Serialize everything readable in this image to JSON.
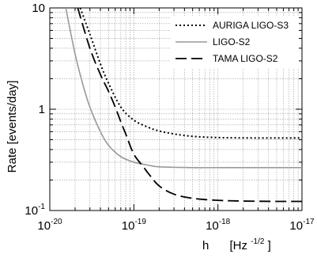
{
  "chart_data": {
    "type": "line",
    "xlabel": "h [Hz-1/2]",
    "xlabel_parts": {
      "symbol": "h",
      "unit_prefix": "[Hz",
      "unit_exp": "-1/2",
      "unit_suffix": "]"
    },
    "ylabel": "Rate [events/day]",
    "xscale": "log",
    "yscale": "log",
    "xlim": [
      1e-20,
      1e-17
    ],
    "ylim": [
      0.1,
      10
    ],
    "grid": true,
    "legend_position": "top-right",
    "x_ticks": [
      {
        "base": "10",
        "exp": "-20",
        "value": 1e-20
      },
      {
        "base": "10",
        "exp": "-19",
        "value": 1e-19
      },
      {
        "base": "10",
        "exp": "-18",
        "value": 1e-18
      },
      {
        "base": "10",
        "exp": "-17",
        "value": 1e-17
      }
    ],
    "y_ticks": [
      {
        "base": "10",
        "exp": "-1",
        "value": 0.1
      },
      {
        "base": "1",
        "exp": "",
        "value": 1
      },
      {
        "base": "10",
        "exp": "",
        "value": 10
      }
    ],
    "series": [
      {
        "name": "AURIGA LIGO-S3",
        "style": "dotted",
        "color": "#000000",
        "x": [
          2.3e-20,
          3e-20,
          4e-20,
          5e-20,
          7e-20,
          1e-19,
          1.5e-19,
          2e-19,
          3e-19,
          5e-19,
          1e-18,
          3e-18,
          1e-17
        ],
        "y": [
          10,
          5.5,
          2.8,
          1.8,
          1.05,
          0.78,
          0.66,
          0.61,
          0.57,
          0.54,
          0.525,
          0.52,
          0.52
        ]
      },
      {
        "name": "LIGO-S2",
        "style": "solid",
        "color": "#999999",
        "x": [
          1.55e-20,
          2e-20,
          2.5e-20,
          3e-20,
          4e-20,
          5e-20,
          7e-20,
          1e-19,
          1.5e-19,
          2e-19,
          5e-19,
          1e-18,
          1e-17
        ],
        "y": [
          10,
          3.5,
          1.7,
          1.05,
          0.6,
          0.44,
          0.34,
          0.3,
          0.28,
          0.27,
          0.265,
          0.265,
          0.265
        ]
      },
      {
        "name": "TAMA LIGO-S2",
        "style": "dashed",
        "color": "#000000",
        "x": [
          2.15e-20,
          3e-20,
          4e-20,
          5e-20,
          6e-20,
          7e-20,
          8e-20,
          1e-19,
          1.3e-19,
          1.5e-19,
          2e-19,
          3e-19,
          5e-19,
          1e-18,
          2e-18,
          5e-18,
          1e-17
        ],
        "y": [
          10,
          4,
          2.2,
          1.5,
          1.05,
          0.75,
          0.57,
          0.36,
          0.27,
          0.23,
          0.175,
          0.145,
          0.132,
          0.126,
          0.124,
          0.123,
          0.123
        ]
      }
    ]
  }
}
